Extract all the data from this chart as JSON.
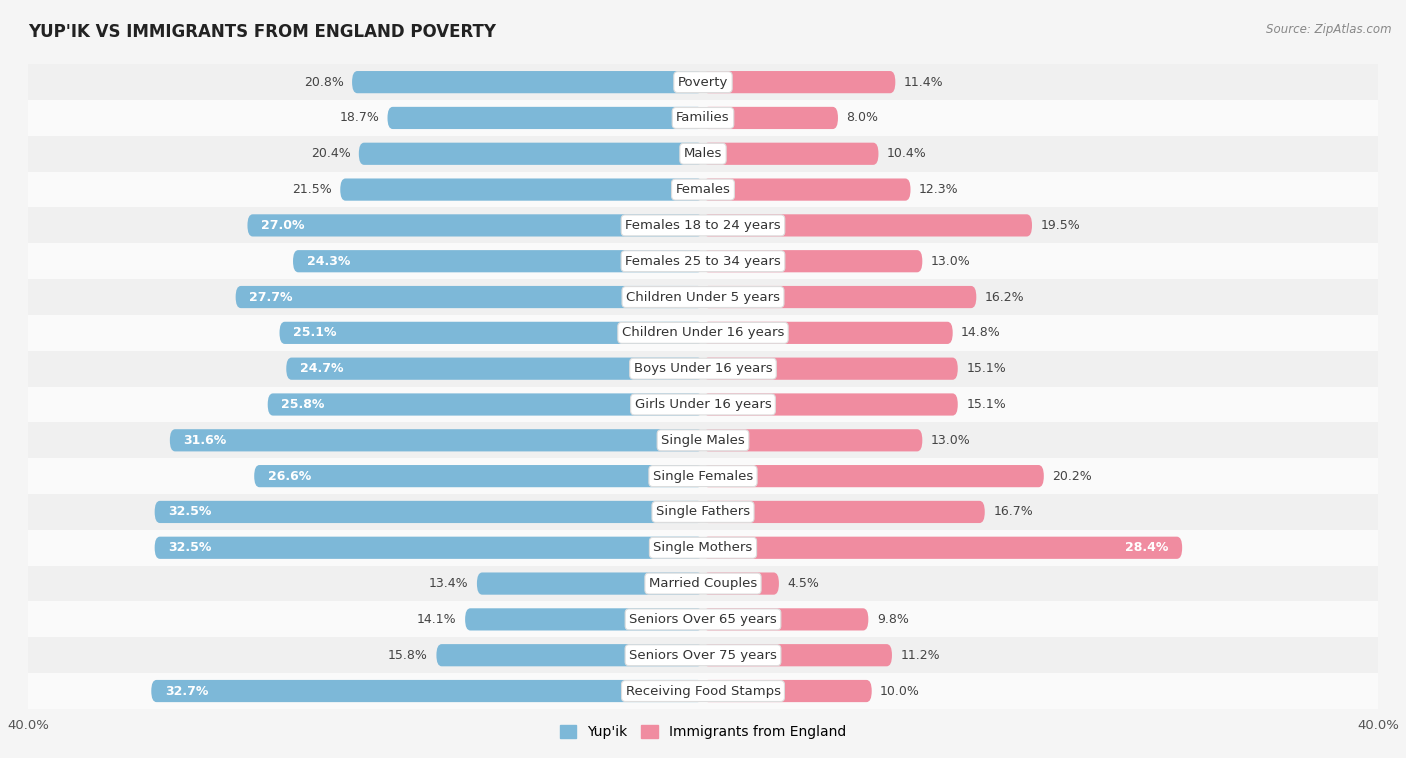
{
  "title": "YUP'IK VS IMMIGRANTS FROM ENGLAND POVERTY",
  "source": "Source: ZipAtlas.com",
  "categories": [
    "Poverty",
    "Families",
    "Males",
    "Females",
    "Females 18 to 24 years",
    "Females 25 to 34 years",
    "Children Under 5 years",
    "Children Under 16 years",
    "Boys Under 16 years",
    "Girls Under 16 years",
    "Single Males",
    "Single Females",
    "Single Fathers",
    "Single Mothers",
    "Married Couples",
    "Seniors Over 65 years",
    "Seniors Over 75 years",
    "Receiving Food Stamps"
  ],
  "yupik_values": [
    20.8,
    18.7,
    20.4,
    21.5,
    27.0,
    24.3,
    27.7,
    25.1,
    24.7,
    25.8,
    31.6,
    26.6,
    32.5,
    32.5,
    13.4,
    14.1,
    15.8,
    32.7
  ],
  "england_values": [
    11.4,
    8.0,
    10.4,
    12.3,
    19.5,
    13.0,
    16.2,
    14.8,
    15.1,
    15.1,
    13.0,
    20.2,
    16.7,
    28.4,
    4.5,
    9.8,
    11.2,
    10.0
  ],
  "yupik_color": "#7db8d8",
  "england_color": "#f08ca0",
  "row_color_even": "#f0f0f0",
  "row_color_odd": "#fafafa",
  "background_color": "#f5f5f5",
  "axis_limit": 40.0,
  "bar_height": 0.62,
  "label_fontsize": 9.0,
  "title_fontsize": 12,
  "category_fontsize": 9.5,
  "legend_label_yupik": "Yup'ik",
  "legend_label_england": "Immigrants from England"
}
